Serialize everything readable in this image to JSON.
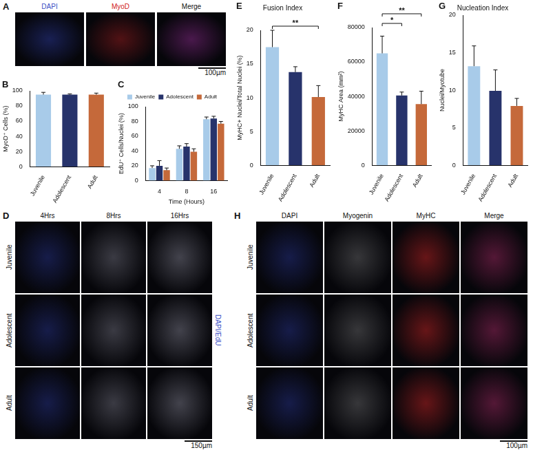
{
  "chart_data": [
    {
      "panel": "B",
      "type": "bar",
      "y_label": "MyoD⁺ Cells (%)",
      "categories": [
        "Juvenile",
        "Adolescent",
        "Adult"
      ],
      "values": [
        95,
        95,
        95
      ],
      "errors": [
        3,
        1,
        2
      ],
      "colors": [
        "#a8cbe9",
        "#27336b",
        "#c5693a"
      ],
      "ylim": [
        0,
        100
      ],
      "yticks": [
        0,
        20,
        40,
        60,
        80,
        100
      ],
      "grid": false
    },
    {
      "panel": "C",
      "type": "bar",
      "y_label": "EdU⁺ Cells/Nuclei (%)",
      "x_label": "Time (Hours)",
      "categories": [
        4,
        8,
        16
      ],
      "series": [
        {
          "name": "Juvenile",
          "color": "#a8cbe9",
          "values": [
            17,
            43,
            83
          ],
          "errors": [
            3,
            4,
            3
          ]
        },
        {
          "name": "Adolescent",
          "color": "#27336b",
          "values": [
            20,
            46,
            84
          ],
          "errors": [
            7,
            4,
            3
          ]
        },
        {
          "name": "Adult",
          "color": "#c5693a",
          "values": [
            14,
            39,
            77
          ],
          "errors": [
            3,
            4,
            3
          ]
        }
      ],
      "ylim": [
        0,
        100
      ],
      "yticks": [
        0,
        20,
        40,
        60,
        80,
        100
      ],
      "grid": false,
      "legend": "top"
    },
    {
      "panel": "E",
      "type": "bar",
      "title": "Fusion Index",
      "y_label": "MyHC+ Nuclei/Total Nuclei (%)",
      "categories": [
        "Juvenile",
        "Adolescent",
        "Adult"
      ],
      "values": [
        17.5,
        13.8,
        10.1
      ],
      "errors": [
        2.5,
        0.8,
        1.7
      ],
      "colors": [
        "#a8cbe9",
        "#27336b",
        "#c5693a"
      ],
      "ylim": [
        0,
        20
      ],
      "yticks": [
        0,
        5,
        10,
        15,
        20
      ],
      "grid": false,
      "annotations": [
        {
          "from": "Juvenile",
          "to": "Adult",
          "label": "**"
        }
      ]
    },
    {
      "panel": "F",
      "type": "bar",
      "y_label": "MyHC Area (mm²)",
      "categories": [
        "Juvenile",
        "Adolescent",
        "Adult"
      ],
      "values": [
        65000,
        40500,
        35500
      ],
      "errors": [
        10000,
        2000,
        7500
      ],
      "colors": [
        "#a8cbe9",
        "#27336b",
        "#c5693a"
      ],
      "ylim": [
        0,
        80000
      ],
      "yticks": [
        0,
        20000,
        40000,
        60000,
        80000
      ],
      "grid": false,
      "annotations": [
        {
          "from": "Juvenile",
          "to": "Adolescent",
          "label": "*"
        },
        {
          "from": "Juvenile",
          "to": "Adult",
          "label": "**"
        }
      ]
    },
    {
      "panel": "G",
      "type": "bar",
      "title": "Nucleation Index",
      "y_label": "Nuclei/Myotube",
      "categories": [
        "Juvenile",
        "Adolescent",
        "Adult"
      ],
      "values": [
        13.2,
        9.9,
        7.9
      ],
      "errors": [
        2.7,
        2.8,
        1.0
      ],
      "colors": [
        "#a8cbe9",
        "#27336b",
        "#c5693a"
      ],
      "ylim": [
        0,
        20
      ],
      "yticks": [
        0,
        5,
        10,
        15,
        20
      ],
      "grid": false
    }
  ],
  "image_panels": [
    {
      "panel": "A",
      "columns": [
        "DAPI",
        "MyoD",
        "Merge"
      ],
      "scale_bar": "100µm"
    },
    {
      "panel": "D",
      "columns": [
        "4Hrs",
        "8Hrs",
        "16Hrs"
      ],
      "rows": [
        "Juvenile",
        "Adolescent",
        "Adult"
      ],
      "side_label": "DAPI/EdU",
      "scale_bar": "150µm"
    },
    {
      "panel": "H",
      "columns": [
        "DAPI",
        "Myogenin",
        "MyHC",
        "Merge"
      ],
      "rows": [
        "Juvenile",
        "Adolescent",
        "Adult"
      ],
      "scale_bar": "100µm"
    }
  ]
}
